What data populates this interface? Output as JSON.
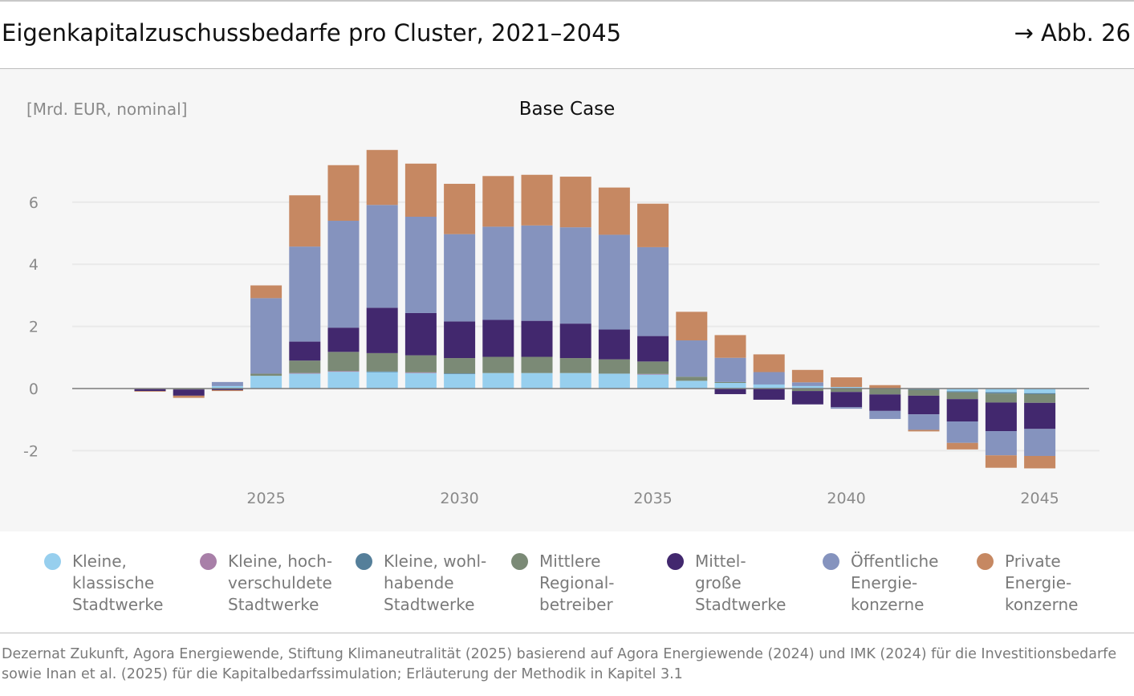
{
  "header": {
    "title": "Eigenkapitalzuschussbedarfe pro Cluster, 2021–2045",
    "ref": "→ Abb. 26"
  },
  "footer": {
    "source": "Dezernat Zukunft, Agora Energiewende, Stiftung Klimaneutralität (2025) basierend auf Agora Energiewende (2024) und IMK (2024) für die Investitionsbedarfe sowie Inan et al. (2025) für die Kapitalbedarfssimulation; Erläuterung der Methodik in Kapitel 3.1"
  },
  "chart_data": {
    "type": "bar",
    "stacked": true,
    "title": "Base Case",
    "ylabel": "[Mrd. EUR, nominal]",
    "xlabel": "",
    "ylim": [
      -2.8,
      7.8
    ],
    "yticks": [
      -2,
      0,
      2,
      4,
      6
    ],
    "xticks": [
      2025,
      2030,
      2035,
      2040,
      2045
    ],
    "grid": true,
    "legend_position": "bottom",
    "categories": [
      2021,
      2022,
      2023,
      2024,
      2025,
      2026,
      2027,
      2028,
      2029,
      2030,
      2031,
      2032,
      2033,
      2034,
      2035,
      2036,
      2037,
      2038,
      2039,
      2040,
      2041,
      2042,
      2043,
      2044,
      2045
    ],
    "series": [
      {
        "name": "Kleine,\nklassische\nStadtwerke",
        "color": "#97cfee",
        "values": [
          0,
          0,
          0,
          0.08,
          0.41,
          0.48,
          0.54,
          0.53,
          0.5,
          0.47,
          0.5,
          0.5,
          0.5,
          0.48,
          0.45,
          0.25,
          0.18,
          0.13,
          0.08,
          0.05,
          0,
          -0.02,
          -0.09,
          -0.12,
          -0.15
        ]
      },
      {
        "name": "Kleine, hoch-\nverschuldete\nStadtwerke",
        "color": "#a87fa8",
        "values": [
          0,
          -0.02,
          0,
          0,
          0,
          0.02,
          0.02,
          0,
          0.02,
          0,
          0,
          0,
          0,
          0,
          0.02,
          0,
          0,
          0,
          0,
          0,
          0,
          0,
          0,
          0,
          0
        ]
      },
      {
        "name": "Kleine, wohl-\nhabende\nStadtwerke",
        "color": "#557f9a",
        "values": [
          0,
          0,
          0,
          0,
          0,
          0,
          0,
          0.02,
          0,
          0.02,
          0,
          0,
          0,
          0,
          0,
          0,
          0,
          0,
          0,
          0,
          0,
          -0.02,
          -0.03,
          -0.04,
          -0.03
        ]
      },
      {
        "name": "Mittlere\nRegional-\nbetreiber",
        "color": "#7b8a76",
        "values": [
          0,
          0,
          -0.03,
          0,
          0.07,
          0.4,
          0.62,
          0.59,
          0.55,
          0.49,
          0.52,
          0.52,
          0.48,
          0.46,
          0.4,
          0.13,
          0.03,
          0,
          -0.08,
          -0.11,
          -0.19,
          -0.19,
          -0.22,
          -0.29,
          -0.28
        ]
      },
      {
        "name": "Mittel-\ngroße\nStadtwerke",
        "color": "#42286e",
        "values": [
          0,
          -0.06,
          -0.2,
          -0.05,
          0,
          0.61,
          0.78,
          1.46,
          1.36,
          1.18,
          1.19,
          1.16,
          1.11,
          0.96,
          0.82,
          0,
          -0.18,
          -0.36,
          -0.43,
          -0.49,
          -0.53,
          -0.6,
          -0.72,
          -0.92,
          -0.84
        ]
      },
      {
        "name": "Öffentliche\nEnergie-\nkonzerne",
        "color": "#8593be",
        "values": [
          0,
          0,
          0,
          0.13,
          2.43,
          3.06,
          3.44,
          3.31,
          3.1,
          2.81,
          3.0,
          3.07,
          3.1,
          3.05,
          2.86,
          1.17,
          0.78,
          0.4,
          0.12,
          -0.05,
          -0.26,
          -0.5,
          -0.69,
          -0.78,
          -0.87
        ]
      },
      {
        "name": "Private\nEnergie-\nkonzerne",
        "color": "#c68862",
        "values": [
          0,
          -0.02,
          -0.07,
          -0.03,
          0.41,
          1.65,
          1.79,
          1.77,
          1.71,
          1.62,
          1.63,
          1.63,
          1.63,
          1.52,
          1.4,
          0.92,
          0.73,
          0.57,
          0.4,
          0.31,
          0.11,
          -0.05,
          -0.21,
          -0.4,
          -0.4
        ]
      }
    ]
  }
}
